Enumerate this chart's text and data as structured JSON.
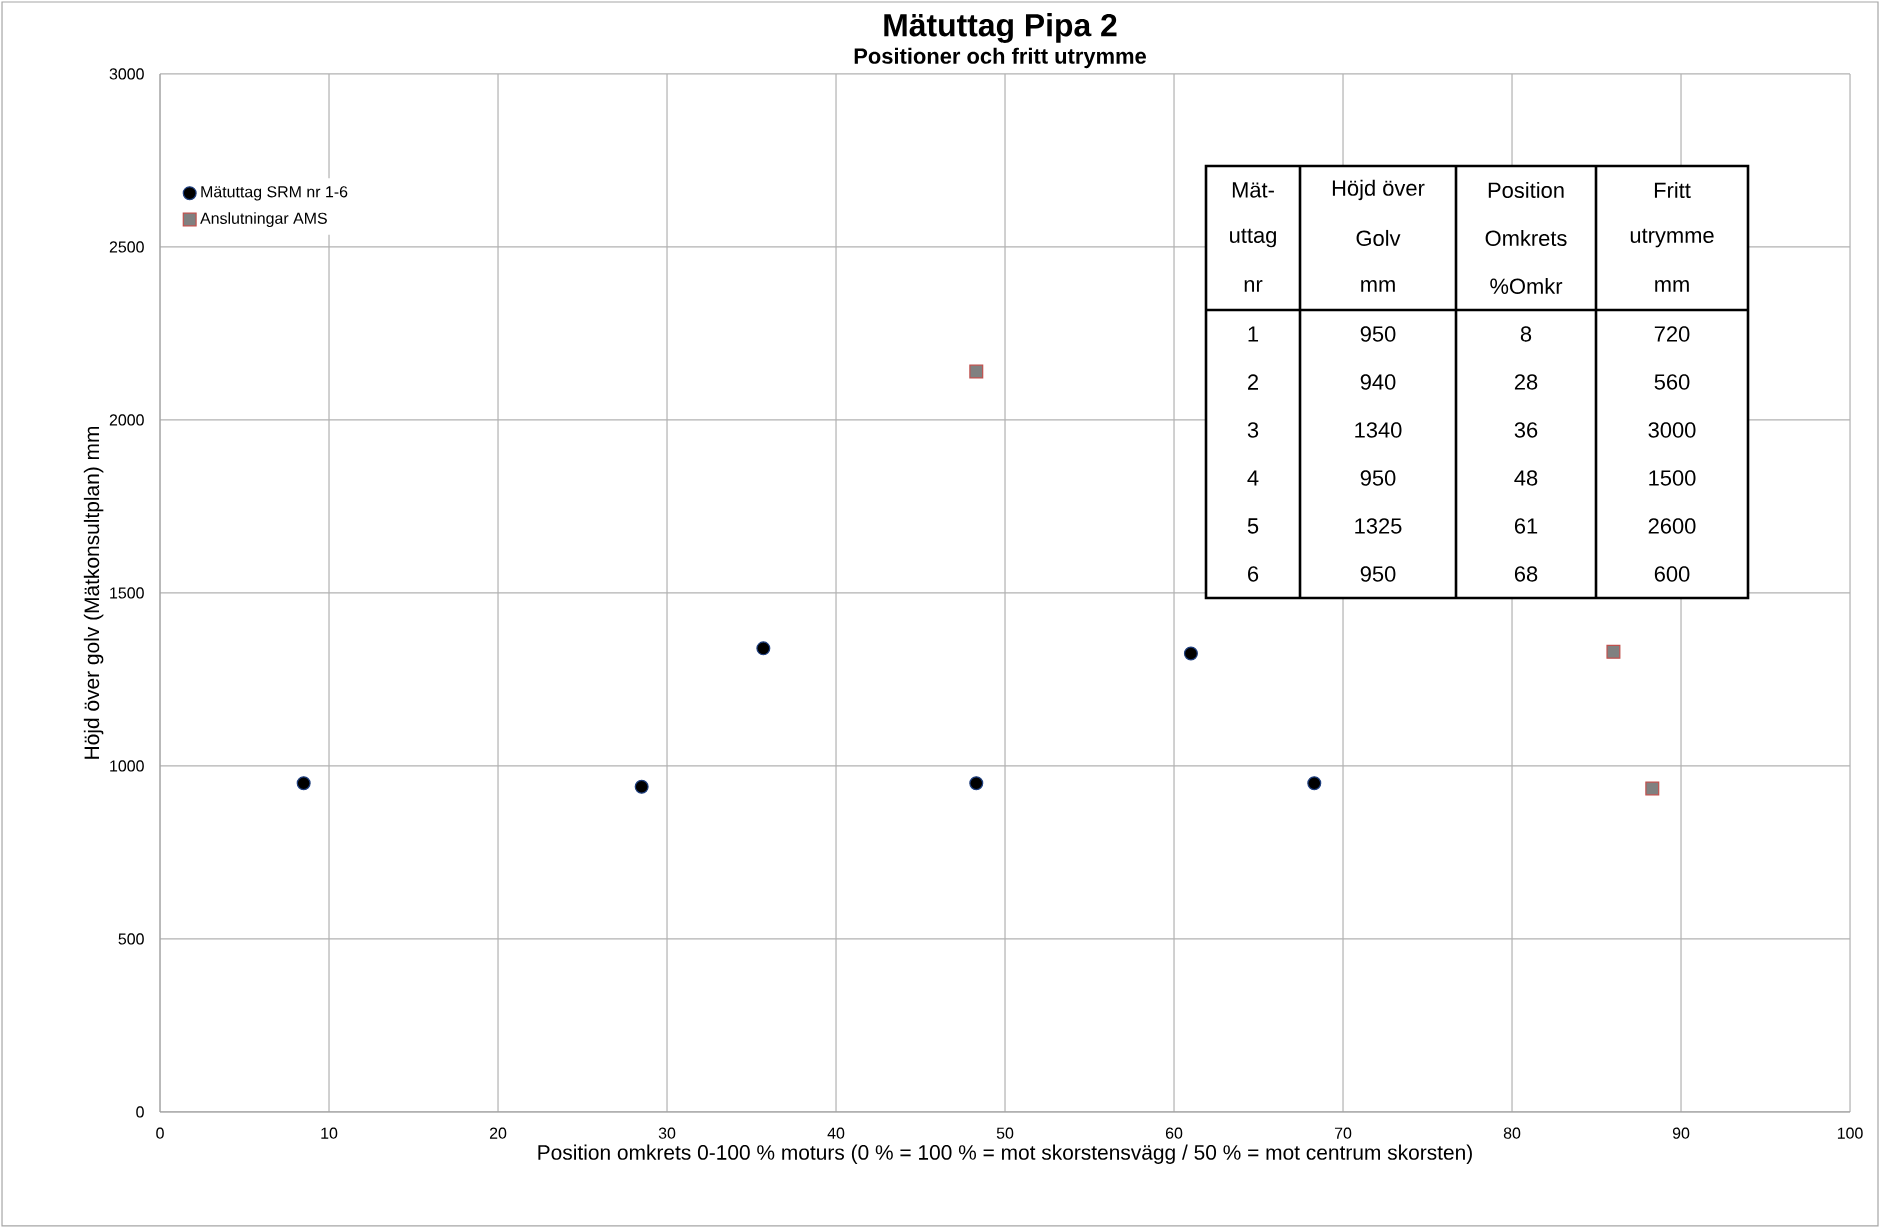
{
  "chart_data": {
    "type": "scatter",
    "title": "Mätuttag Pipa 2",
    "subtitle": "Positioner och fritt utrymme",
    "xlabel": "Position omkrets  0-100 %  moturs (0 % = 100 % = mot skorstensvägg /  50 % = mot centrum skorsten)",
    "ylabel": "Höjd över golv (Mätkonsultplan)  mm",
    "xlim": [
      0,
      100
    ],
    "ylim": [
      0,
      3000
    ],
    "xticks": [
      0,
      10,
      20,
      30,
      40,
      50,
      60,
      70,
      80,
      90,
      100
    ],
    "yticks": [
      0,
      500,
      1000,
      1500,
      2000,
      2500,
      3000
    ],
    "grid": true,
    "legend": "top left",
    "series": [
      {
        "name": "Mätuttag SRM nr 1-6",
        "color": "#000000",
        "marker": "circle",
        "x": [
          8.5,
          28.5,
          35.7,
          48.3,
          61,
          68.3
        ],
        "values": [
          950,
          940,
          1340,
          950,
          1325,
          950
        ]
      },
      {
        "name": "Anslutningar AMS",
        "color": "#808080",
        "marker": "square",
        "x": [
          48.3,
          86,
          88.3
        ],
        "values": [
          2140,
          1330,
          935
        ]
      }
    ],
    "annotations": [
      "Mät-",
      "Höjd över",
      "Position",
      "Fritt",
      "uttag",
      "Golv",
      "Omkrets",
      "utrymme",
      "nr",
      "mm",
      "%Omkr",
      "mm",
      "1",
      "950",
      "8",
      "720",
      "2",
      "940",
      "28",
      "560",
      "3",
      "1340",
      "36",
      "3000",
      "4",
      "950",
      "48",
      "1500",
      "5",
      "1325",
      "61",
      "2600",
      "6",
      "950",
      "68",
      "600"
    ]
  }
}
